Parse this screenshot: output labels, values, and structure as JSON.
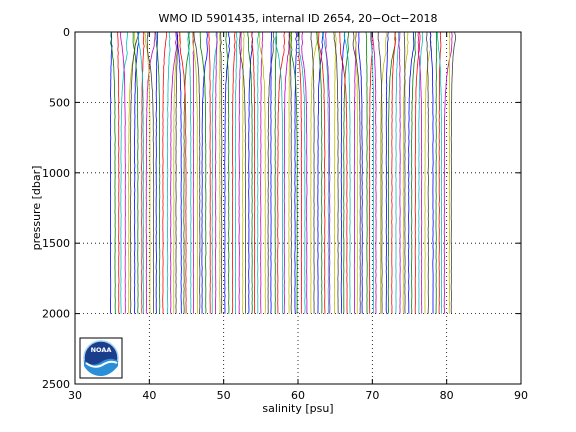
{
  "chart_data": {
    "type": "line",
    "title": "WMO ID 5901435, internal ID 2654, 20−Oct−2018",
    "xlabel": "salinity [psu]",
    "ylabel": "pressure [dbar]",
    "xlim": [
      30,
      90
    ],
    "ylim": [
      2500,
      0
    ],
    "y_reversed": true,
    "grid": true,
    "grid_style": "dotted",
    "x_ticks": [
      "30",
      "40",
      "50",
      "60",
      "70",
      "80",
      "90"
    ],
    "y_ticks": [
      "0",
      "500",
      "1000",
      "1500",
      "2000",
      "2500"
    ],
    "series_colors": [
      "#0000ff",
      "#008000",
      "#ff0000",
      "#00bfbf",
      "#bf00bf",
      "#bfbf00",
      "#404040"
    ],
    "profiles": {
      "count": 105,
      "first_offset_psu": 0,
      "offset_step_psu": 0.44,
      "deep_salinity_psu": 34.9,
      "surface_salinity_range_psu": [
        34.0,
        35.9
      ],
      "max_pressure_dbar": 2000
    },
    "logo": {
      "name": "NOAA",
      "text": "NOAA"
    }
  }
}
